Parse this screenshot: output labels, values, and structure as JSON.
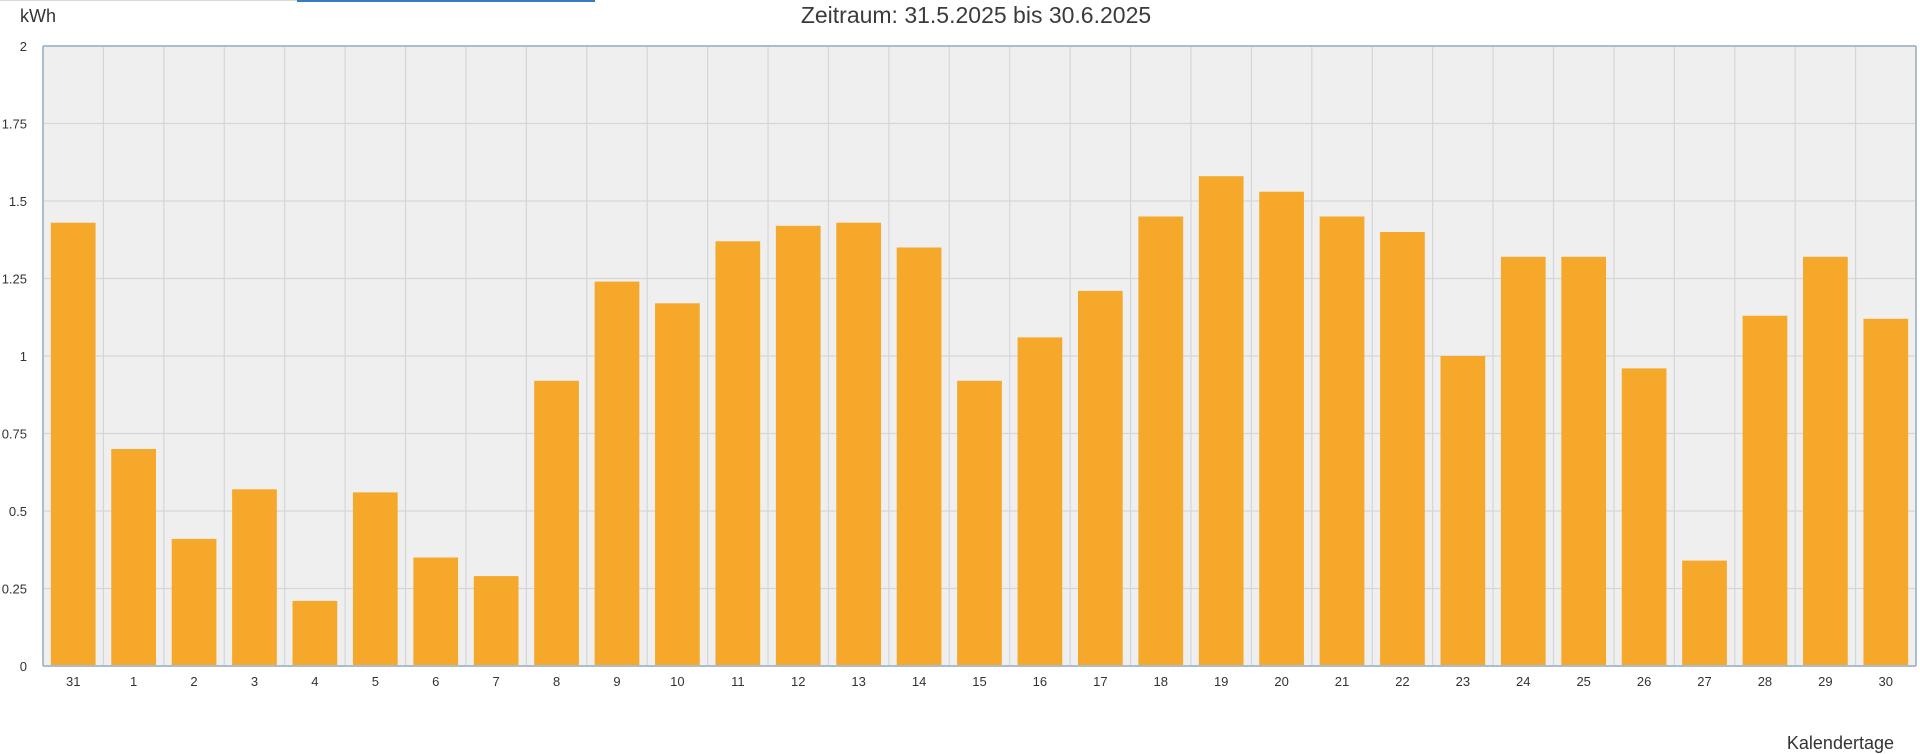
{
  "chart_data": {
    "type": "bar",
    "title": "Zeitraum: 31.5.2025 bis 30.6.2025",
    "ylabel": "kWh",
    "xlabel": "Kalendertage",
    "ylim": [
      0,
      2
    ],
    "yticks": [
      "0",
      "0.25",
      "0.5",
      "0.75",
      "1",
      "1.25",
      "1.5",
      "1.75",
      "2"
    ],
    "ytick_values": [
      0,
      0.25,
      0.5,
      0.75,
      1,
      1.25,
      1.5,
      1.75,
      2
    ],
    "grid": true,
    "categories": [
      "31",
      "1",
      "2",
      "3",
      "4",
      "5",
      "6",
      "7",
      "8",
      "9",
      "10",
      "11",
      "12",
      "13",
      "14",
      "15",
      "16",
      "17",
      "18",
      "19",
      "20",
      "21",
      "22",
      "23",
      "24",
      "25",
      "26",
      "27",
      "28",
      "29",
      "30"
    ],
    "values": [
      1.43,
      0.7,
      0.41,
      0.57,
      0.21,
      0.56,
      0.35,
      0.29,
      0.92,
      1.24,
      1.17,
      1.37,
      1.42,
      1.43,
      1.35,
      0.92,
      1.06,
      1.21,
      1.45,
      1.58,
      1.53,
      1.45,
      1.4,
      1.0,
      1.32,
      1.32,
      0.96,
      0.34,
      1.13,
      1.32,
      1.12
    ],
    "colors": {
      "bar": "#f5a82a",
      "plot_background": "#efefef",
      "grid": "#d6d6d6",
      "axis": "#a9bdd0"
    }
  }
}
